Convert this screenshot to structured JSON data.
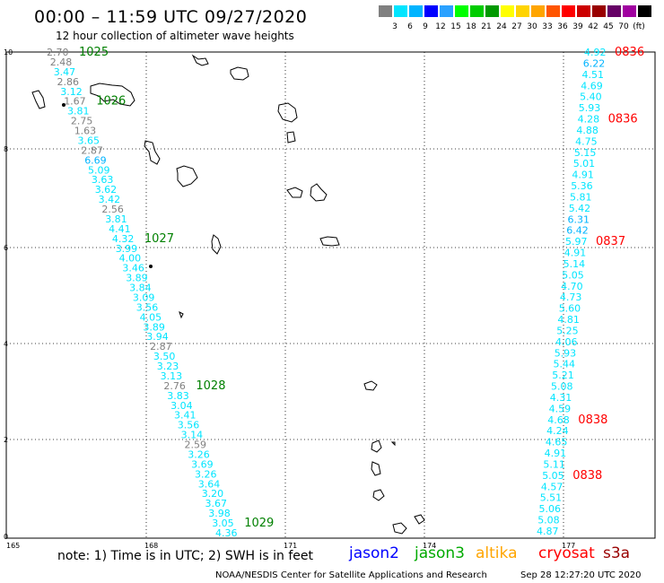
{
  "title": "00:00 – 11:59 UTC 09/27/2020",
  "subtitle": "12 hour collection of altimeter wave heights",
  "scale": {
    "colors": [
      "#808080",
      "#00e5ff",
      "#00b4ff",
      "#0000ff",
      "#2aa1ff",
      "#00ff00",
      "#00cc00",
      "#009900",
      "#ffff00",
      "#ffd400",
      "#ffa500",
      "#ff5500",
      "#ff0000",
      "#cc0000",
      "#990000",
      "#660066",
      "#a000a0",
      "#000000"
    ],
    "labels": [
      "3",
      "6",
      "9",
      "12",
      "15",
      "18",
      "21",
      "24",
      "27",
      "30",
      "33",
      "36",
      "39",
      "42",
      "45",
      "70",
      "(ft)"
    ]
  },
  "map": {
    "x_axis": {
      "labels": [
        "165",
        "168",
        "171",
        "174",
        "177"
      ]
    },
    "y_axis": {
      "labels": [
        "0",
        "2",
        "4",
        "6",
        "8",
        "10"
      ]
    },
    "grid": true
  },
  "tracks": [
    {
      "satellite": "jason3",
      "color": "#00e5ff",
      "times": [
        {
          "label": "1025",
          "color": "#008000"
        },
        {
          "label": "1026",
          "color": "#008000"
        },
        {
          "label": "1027",
          "color": "#008000"
        },
        {
          "label": "1028",
          "color": "#008000"
        },
        {
          "label": "1029",
          "color": "#008000"
        }
      ],
      "points": [
        {
          "v": "2.70",
          "c": "#808080"
        },
        {
          "v": "2.48",
          "c": "#808080"
        },
        {
          "v": "3.47",
          "c": "#00e5ff"
        },
        {
          "v": "2.86",
          "c": "#808080"
        },
        {
          "v": "3.12",
          "c": "#00e5ff"
        },
        {
          "v": "1.67",
          "c": "#808080"
        },
        {
          "v": "3.81",
          "c": "#00e5ff"
        },
        {
          "v": "2.75",
          "c": "#808080"
        },
        {
          "v": "1.63",
          "c": "#808080"
        },
        {
          "v": "3.65",
          "c": "#00e5ff"
        },
        {
          "v": "2.87",
          "c": "#808080"
        },
        {
          "v": "6.69",
          "c": "#00b4ff"
        },
        {
          "v": "5.09",
          "c": "#00e5ff"
        },
        {
          "v": "3.63",
          "c": "#00e5ff"
        },
        {
          "v": "3.62",
          "c": "#00e5ff"
        },
        {
          "v": "3.42",
          "c": "#00e5ff"
        },
        {
          "v": "2.56",
          "c": "#808080"
        },
        {
          "v": "3.81",
          "c": "#00e5ff"
        },
        {
          "v": "4.41",
          "c": "#00e5ff"
        },
        {
          "v": "4.32",
          "c": "#00e5ff"
        },
        {
          "v": "3.99",
          "c": "#00e5ff"
        },
        {
          "v": "4.00",
          "c": "#00e5ff"
        },
        {
          "v": "3.46",
          "c": "#00e5ff"
        },
        {
          "v": "3.89",
          "c": "#00e5ff"
        },
        {
          "v": "3.84",
          "c": "#00e5ff"
        },
        {
          "v": "3.09",
          "c": "#00e5ff"
        },
        {
          "v": "3.56",
          "c": "#00e5ff"
        },
        {
          "v": "4.05",
          "c": "#00e5ff"
        },
        {
          "v": "3.89",
          "c": "#00e5ff"
        },
        {
          "v": "3.94",
          "c": "#00e5ff"
        },
        {
          "v": "2.87",
          "c": "#808080"
        },
        {
          "v": "3.50",
          "c": "#00e5ff"
        },
        {
          "v": "3.23",
          "c": "#00e5ff"
        },
        {
          "v": "3.13",
          "c": "#00e5ff"
        },
        {
          "v": "2.76",
          "c": "#808080"
        },
        {
          "v": "3.83",
          "c": "#00e5ff"
        },
        {
          "v": "3.04",
          "c": "#00e5ff"
        },
        {
          "v": "3.41",
          "c": "#00e5ff"
        },
        {
          "v": "3.56",
          "c": "#00e5ff"
        },
        {
          "v": "3.14",
          "c": "#00e5ff"
        },
        {
          "v": "2.59",
          "c": "#808080"
        },
        {
          "v": "3.26",
          "c": "#00e5ff"
        },
        {
          "v": "3.69",
          "c": "#00e5ff"
        },
        {
          "v": "3.26",
          "c": "#00e5ff"
        },
        {
          "v": "3.64",
          "c": "#00e5ff"
        },
        {
          "v": "3.20",
          "c": "#00e5ff"
        },
        {
          "v": "3.67",
          "c": "#00e5ff"
        },
        {
          "v": "3.98",
          "c": "#00e5ff"
        },
        {
          "v": "3.05",
          "c": "#00e5ff"
        },
        {
          "v": "4.36",
          "c": "#00e5ff"
        }
      ]
    },
    {
      "satellite": "cryosat",
      "color": "#00e5ff",
      "times": [
        {
          "label": "0836",
          "color": "#ff0000"
        },
        {
          "label": "0836",
          "color": "#ff0000"
        },
        {
          "label": "0837",
          "color": "#ff0000"
        },
        {
          "label": "0838",
          "color": "#ff0000"
        },
        {
          "label": "0838",
          "color": "#ff0000"
        }
      ],
      "points": [
        {
          "v": "4.92",
          "c": "#00e5ff"
        },
        {
          "v": "6.22",
          "c": "#00b4ff"
        },
        {
          "v": "4.51",
          "c": "#00e5ff"
        },
        {
          "v": "4.69",
          "c": "#00e5ff"
        },
        {
          "v": "5.40",
          "c": "#00e5ff"
        },
        {
          "v": "5.93",
          "c": "#00e5ff"
        },
        {
          "v": "4.28",
          "c": "#00e5ff"
        },
        {
          "v": "4.88",
          "c": "#00e5ff"
        },
        {
          "v": "4.75",
          "c": "#00e5ff"
        },
        {
          "v": "5.15",
          "c": "#00e5ff"
        },
        {
          "v": "5.01",
          "c": "#00e5ff"
        },
        {
          "v": "4.91",
          "c": "#00e5ff"
        },
        {
          "v": "5.36",
          "c": "#00e5ff"
        },
        {
          "v": "5.81",
          "c": "#00e5ff"
        },
        {
          "v": "5.42",
          "c": "#00e5ff"
        },
        {
          "v": "6.31",
          "c": "#00b4ff"
        },
        {
          "v": "6.42",
          "c": "#00b4ff"
        },
        {
          "v": "5.97",
          "c": "#00e5ff"
        },
        {
          "v": "4.91",
          "c": "#00e5ff"
        },
        {
          "v": "5.14",
          "c": "#00e5ff"
        },
        {
          "v": "5.05",
          "c": "#00e5ff"
        },
        {
          "v": "4.70",
          "c": "#00e5ff"
        },
        {
          "v": "4.73",
          "c": "#00e5ff"
        },
        {
          "v": "5.60",
          "c": "#00e5ff"
        },
        {
          "v": "4.81",
          "c": "#00e5ff"
        },
        {
          "v": "5.25",
          "c": "#00e5ff"
        },
        {
          "v": "4.06",
          "c": "#00e5ff"
        },
        {
          "v": "5.93",
          "c": "#00e5ff"
        },
        {
          "v": "5.44",
          "c": "#00e5ff"
        },
        {
          "v": "5.21",
          "c": "#00e5ff"
        },
        {
          "v": "5.08",
          "c": "#00e5ff"
        },
        {
          "v": "4.31",
          "c": "#00e5ff"
        },
        {
          "v": "4.59",
          "c": "#00e5ff"
        },
        {
          "v": "4.68",
          "c": "#00e5ff"
        },
        {
          "v": "4.24",
          "c": "#00e5ff"
        },
        {
          "v": "4.65",
          "c": "#00e5ff"
        },
        {
          "v": "4.91",
          "c": "#00e5ff"
        },
        {
          "v": "5.11",
          "c": "#00e5ff"
        },
        {
          "v": "5.05",
          "c": "#00e5ff"
        },
        {
          "v": "4.57",
          "c": "#00e5ff"
        },
        {
          "v": "5.51",
          "c": "#00e5ff"
        },
        {
          "v": "5.06",
          "c": "#00e5ff"
        },
        {
          "v": "5.08",
          "c": "#00e5ff"
        },
        {
          "v": "4.87",
          "c": "#00e5ff"
        }
      ]
    }
  ],
  "note": "note:  1) Time is in UTC;  2) SWH is in feet",
  "legend": [
    {
      "label": "jason2",
      "color": "#0000ff"
    },
    {
      "label": "jason3",
      "color": "#00aa00"
    },
    {
      "label": "altika",
      "color": "#ffa500"
    },
    {
      "label": "cryosat",
      "color": "#ff0000"
    },
    {
      "label": "s3a",
      "color": "#990000"
    }
  ],
  "credit": "NOAA/NESDIS Center for Satellite Applications and Research",
  "stamp": "Sep 28 12:27:20 UTC 2020"
}
